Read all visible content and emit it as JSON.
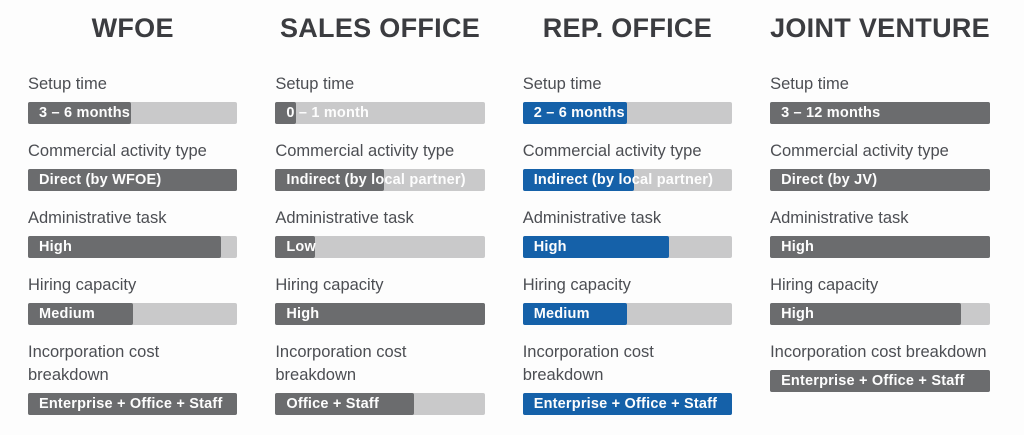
{
  "chart_data": {
    "type": "bar",
    "orientation": "horizontal",
    "description": "Comparison infographic of four China market-entry structures, each metric shown as a labeled horizontal bar whose fill length encodes the qualitative level",
    "metrics": [
      "Setup time",
      "Commercial activity type",
      "Administrative task",
      "Hiring capacity",
      "Incorporation cost breakdown"
    ],
    "colors": {
      "gray_fill": "#6b6c6e",
      "blue_fill": "#1561a9",
      "bar_track": "#c9c9ca",
      "bar_text": "#fdfdfd",
      "title_text": "#3b3c40",
      "label_text": "#4c4e53",
      "background": "#fdfdfd"
    },
    "columns": [
      {
        "title": "WFOE",
        "theme": "gray",
        "rows": [
          {
            "label": "Setup time",
            "value": "3 – 6 months",
            "fill_pct": 49
          },
          {
            "label": "Commercial activity type",
            "value": "Direct (by WFOE)",
            "fill_pct": 100
          },
          {
            "label": "Administrative task",
            "value": "High",
            "fill_pct": 92
          },
          {
            "label": "Hiring capacity",
            "value": "Medium",
            "fill_pct": 50
          },
          {
            "label": "Incorporation cost breakdown",
            "value": "Enterprise + Office + Staff",
            "fill_pct": 100
          }
        ]
      },
      {
        "title": "SALES OFFICE",
        "theme": "gray",
        "rows": [
          {
            "label": "Setup time",
            "value": "0 – 1 month",
            "fill_pct": 10
          },
          {
            "label": "Commercial activity type",
            "value": "Indirect (by local partner)",
            "fill_pct": 52
          },
          {
            "label": "Administrative task",
            "value": "Low",
            "fill_pct": 19
          },
          {
            "label": "Hiring capacity",
            "value": "High",
            "fill_pct": 100
          },
          {
            "label": "Incorporation cost breakdown",
            "value": "Office + Staff",
            "fill_pct": 66
          }
        ]
      },
      {
        "title": "REP. OFFICE",
        "theme": "blue",
        "rows": [
          {
            "label": "Setup time",
            "value": "2 – 6 months",
            "fill_pct": 50
          },
          {
            "label": "Commercial activity type",
            "value": "Indirect (by local partner)",
            "fill_pct": 53
          },
          {
            "label": "Administrative task",
            "value": "High",
            "fill_pct": 70
          },
          {
            "label": "Hiring capacity",
            "value": "Medium",
            "fill_pct": 50
          },
          {
            "label": "Incorporation cost breakdown",
            "value": "Enterprise + Office + Staff",
            "fill_pct": 100
          }
        ]
      },
      {
        "title": "JOINT VENTURE",
        "theme": "gray",
        "rows": [
          {
            "label": "Setup time",
            "value": "3 – 12 months",
            "fill_pct": 100
          },
          {
            "label": "Commercial activity type",
            "value": "Direct (by JV)",
            "fill_pct": 100
          },
          {
            "label": "Administrative task",
            "value": "High",
            "fill_pct": 100
          },
          {
            "label": "Hiring capacity",
            "value": "High",
            "fill_pct": 87
          },
          {
            "label": "Incorporation cost breakdown",
            "value": "Enterprise + Office + Staff",
            "fill_pct": 100
          }
        ]
      }
    ]
  }
}
